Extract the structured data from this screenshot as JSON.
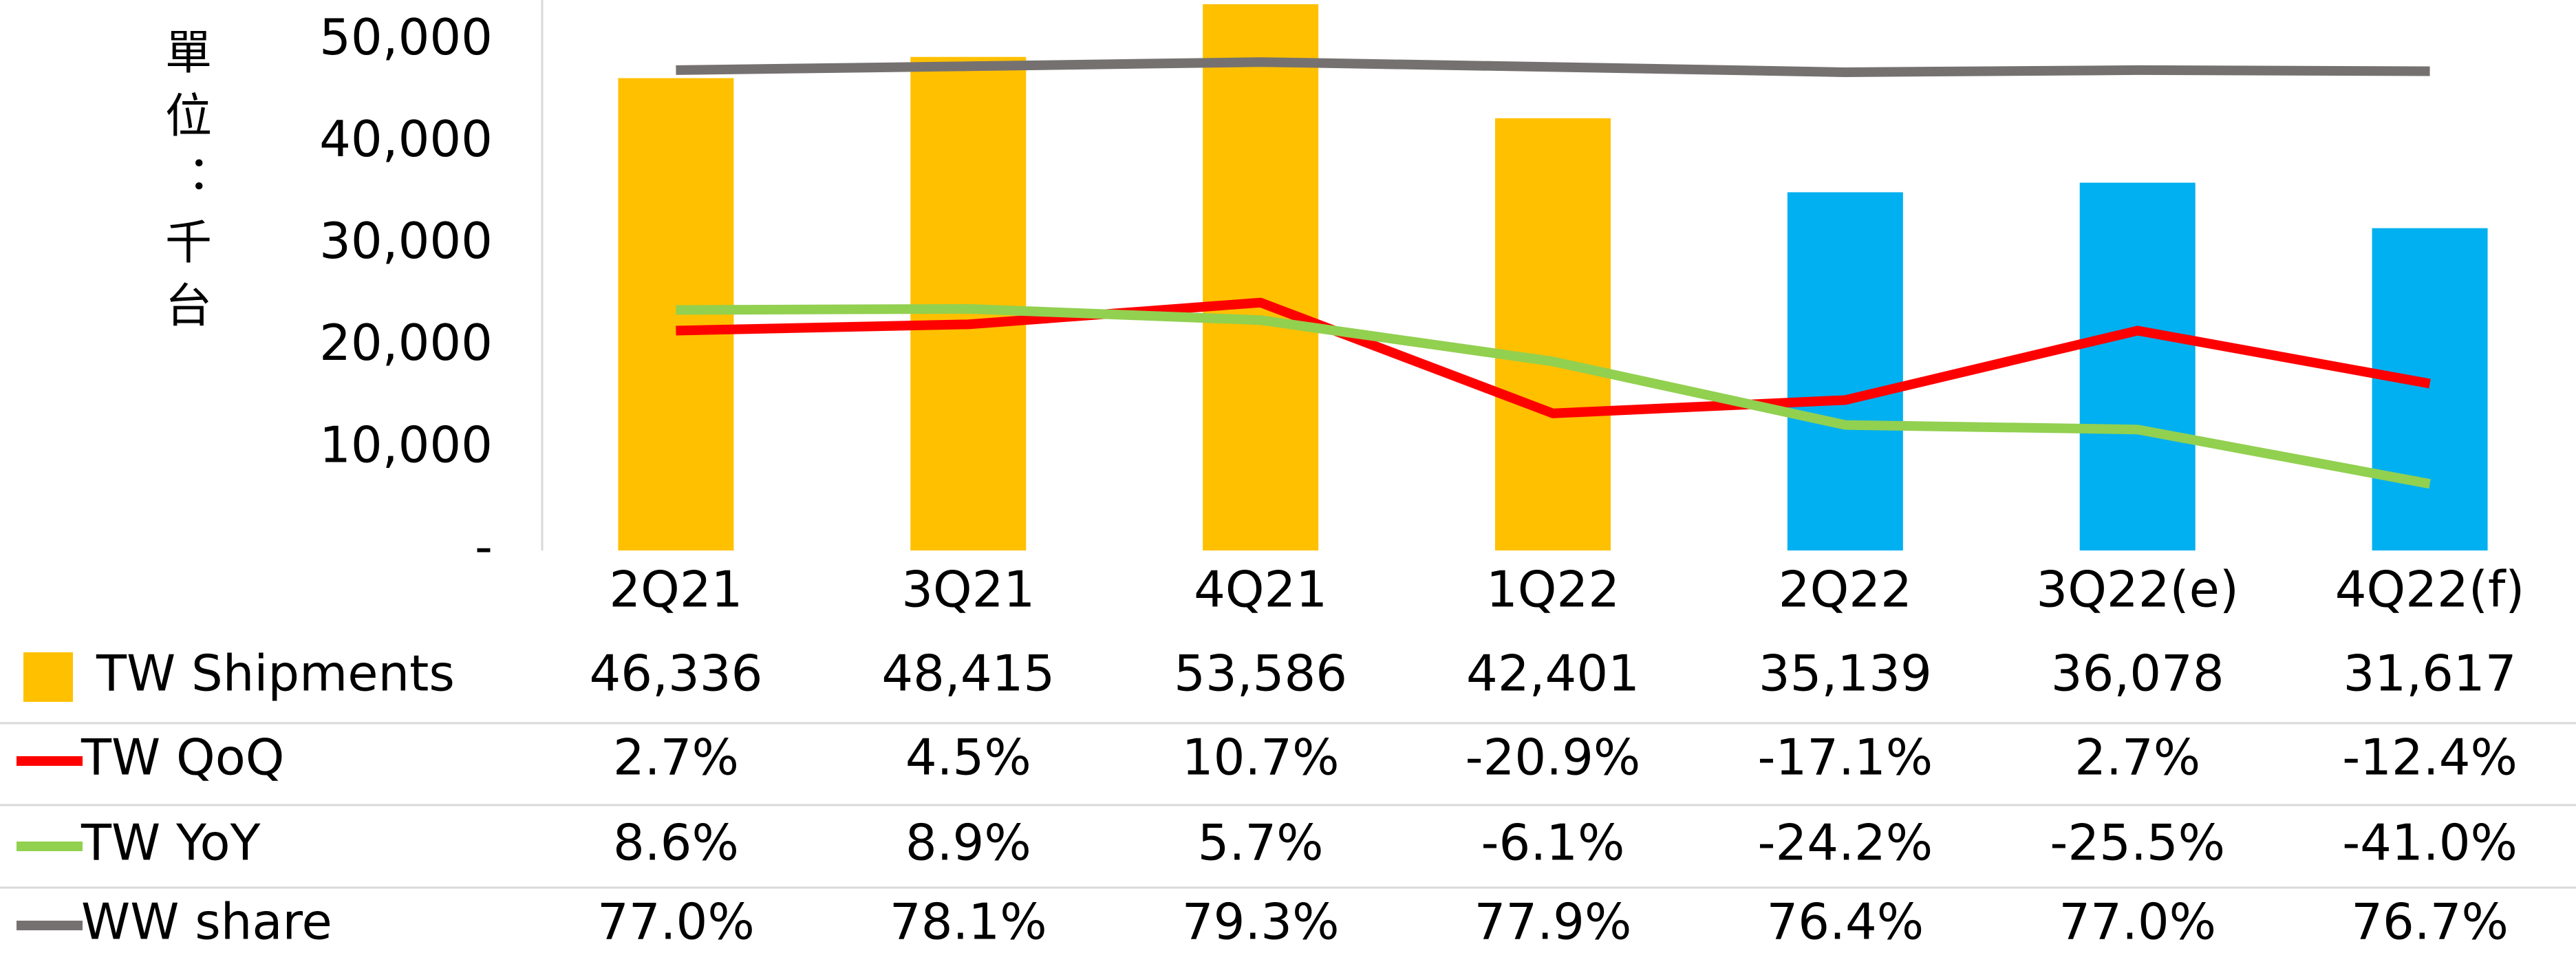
{
  "chart_data": {
    "type": "bar",
    "y_axis_label": "單位：千台",
    "categories": [
      "2Q21",
      "3Q21",
      "4Q21",
      "1Q22",
      "2Q22",
      "3Q22(e)",
      "4Q22(f)"
    ],
    "ylim": [
      0,
      54000
    ],
    "yticks": [
      {
        "value": 0,
        "label": "-"
      },
      {
        "value": 10000,
        "label": "10,000"
      },
      {
        "value": 20000,
        "label": "20,000"
      },
      {
        "value": 30000,
        "label": "30,000"
      },
      {
        "value": 40000,
        "label": "40,000"
      },
      {
        "value": 50000,
        "label": "50,000"
      }
    ],
    "y2lim": [
      -60,
      97
    ],
    "series": [
      {
        "name": "TW Shipments",
        "type": "bar",
        "colors": [
          "#ffc000",
          "#ffc000",
          "#ffc000",
          "#ffc000",
          "#00b0f0",
          "#00b0f0",
          "#00b0f0"
        ],
        "color": "#ffc000",
        "values": [
          46336,
          48415,
          53586,
          42401,
          35139,
          36078,
          31617
        ],
        "value_labels": [
          "46,336",
          "48,415",
          "53,586",
          "42,401",
          "35,139",
          "36,078",
          "31,617"
        ]
      },
      {
        "name": "TW QoQ",
        "type": "line",
        "axis": "y2",
        "color": "#ff0000",
        "values": [
          2.7,
          4.5,
          10.7,
          -20.9,
          -17.1,
          2.7,
          -12.4
        ],
        "value_labels": [
          "2.7%",
          "4.5%",
          "10.7%",
          "-20.9%",
          "-17.1%",
          "2.7%",
          "-12.4%"
        ]
      },
      {
        "name": "TW YoY",
        "type": "line",
        "axis": "y2",
        "color": "#92d050",
        "values": [
          8.6,
          8.9,
          5.7,
          -6.1,
          -24.2,
          -25.5,
          -41.0
        ],
        "value_labels": [
          "8.6%",
          "8.9%",
          "5.7%",
          "-6.1%",
          "-24.2%",
          "-25.5%",
          "-41.0%"
        ]
      },
      {
        "name": "WW share",
        "type": "line",
        "axis": "y2",
        "color": "#767171",
        "values": [
          77.0,
          78.1,
          79.3,
          77.9,
          76.4,
          77.0,
          76.7
        ],
        "value_labels": [
          "77.0%",
          "78.1%",
          "79.3%",
          "77.9%",
          "76.4%",
          "77.0%",
          "76.7%"
        ]
      }
    ]
  }
}
